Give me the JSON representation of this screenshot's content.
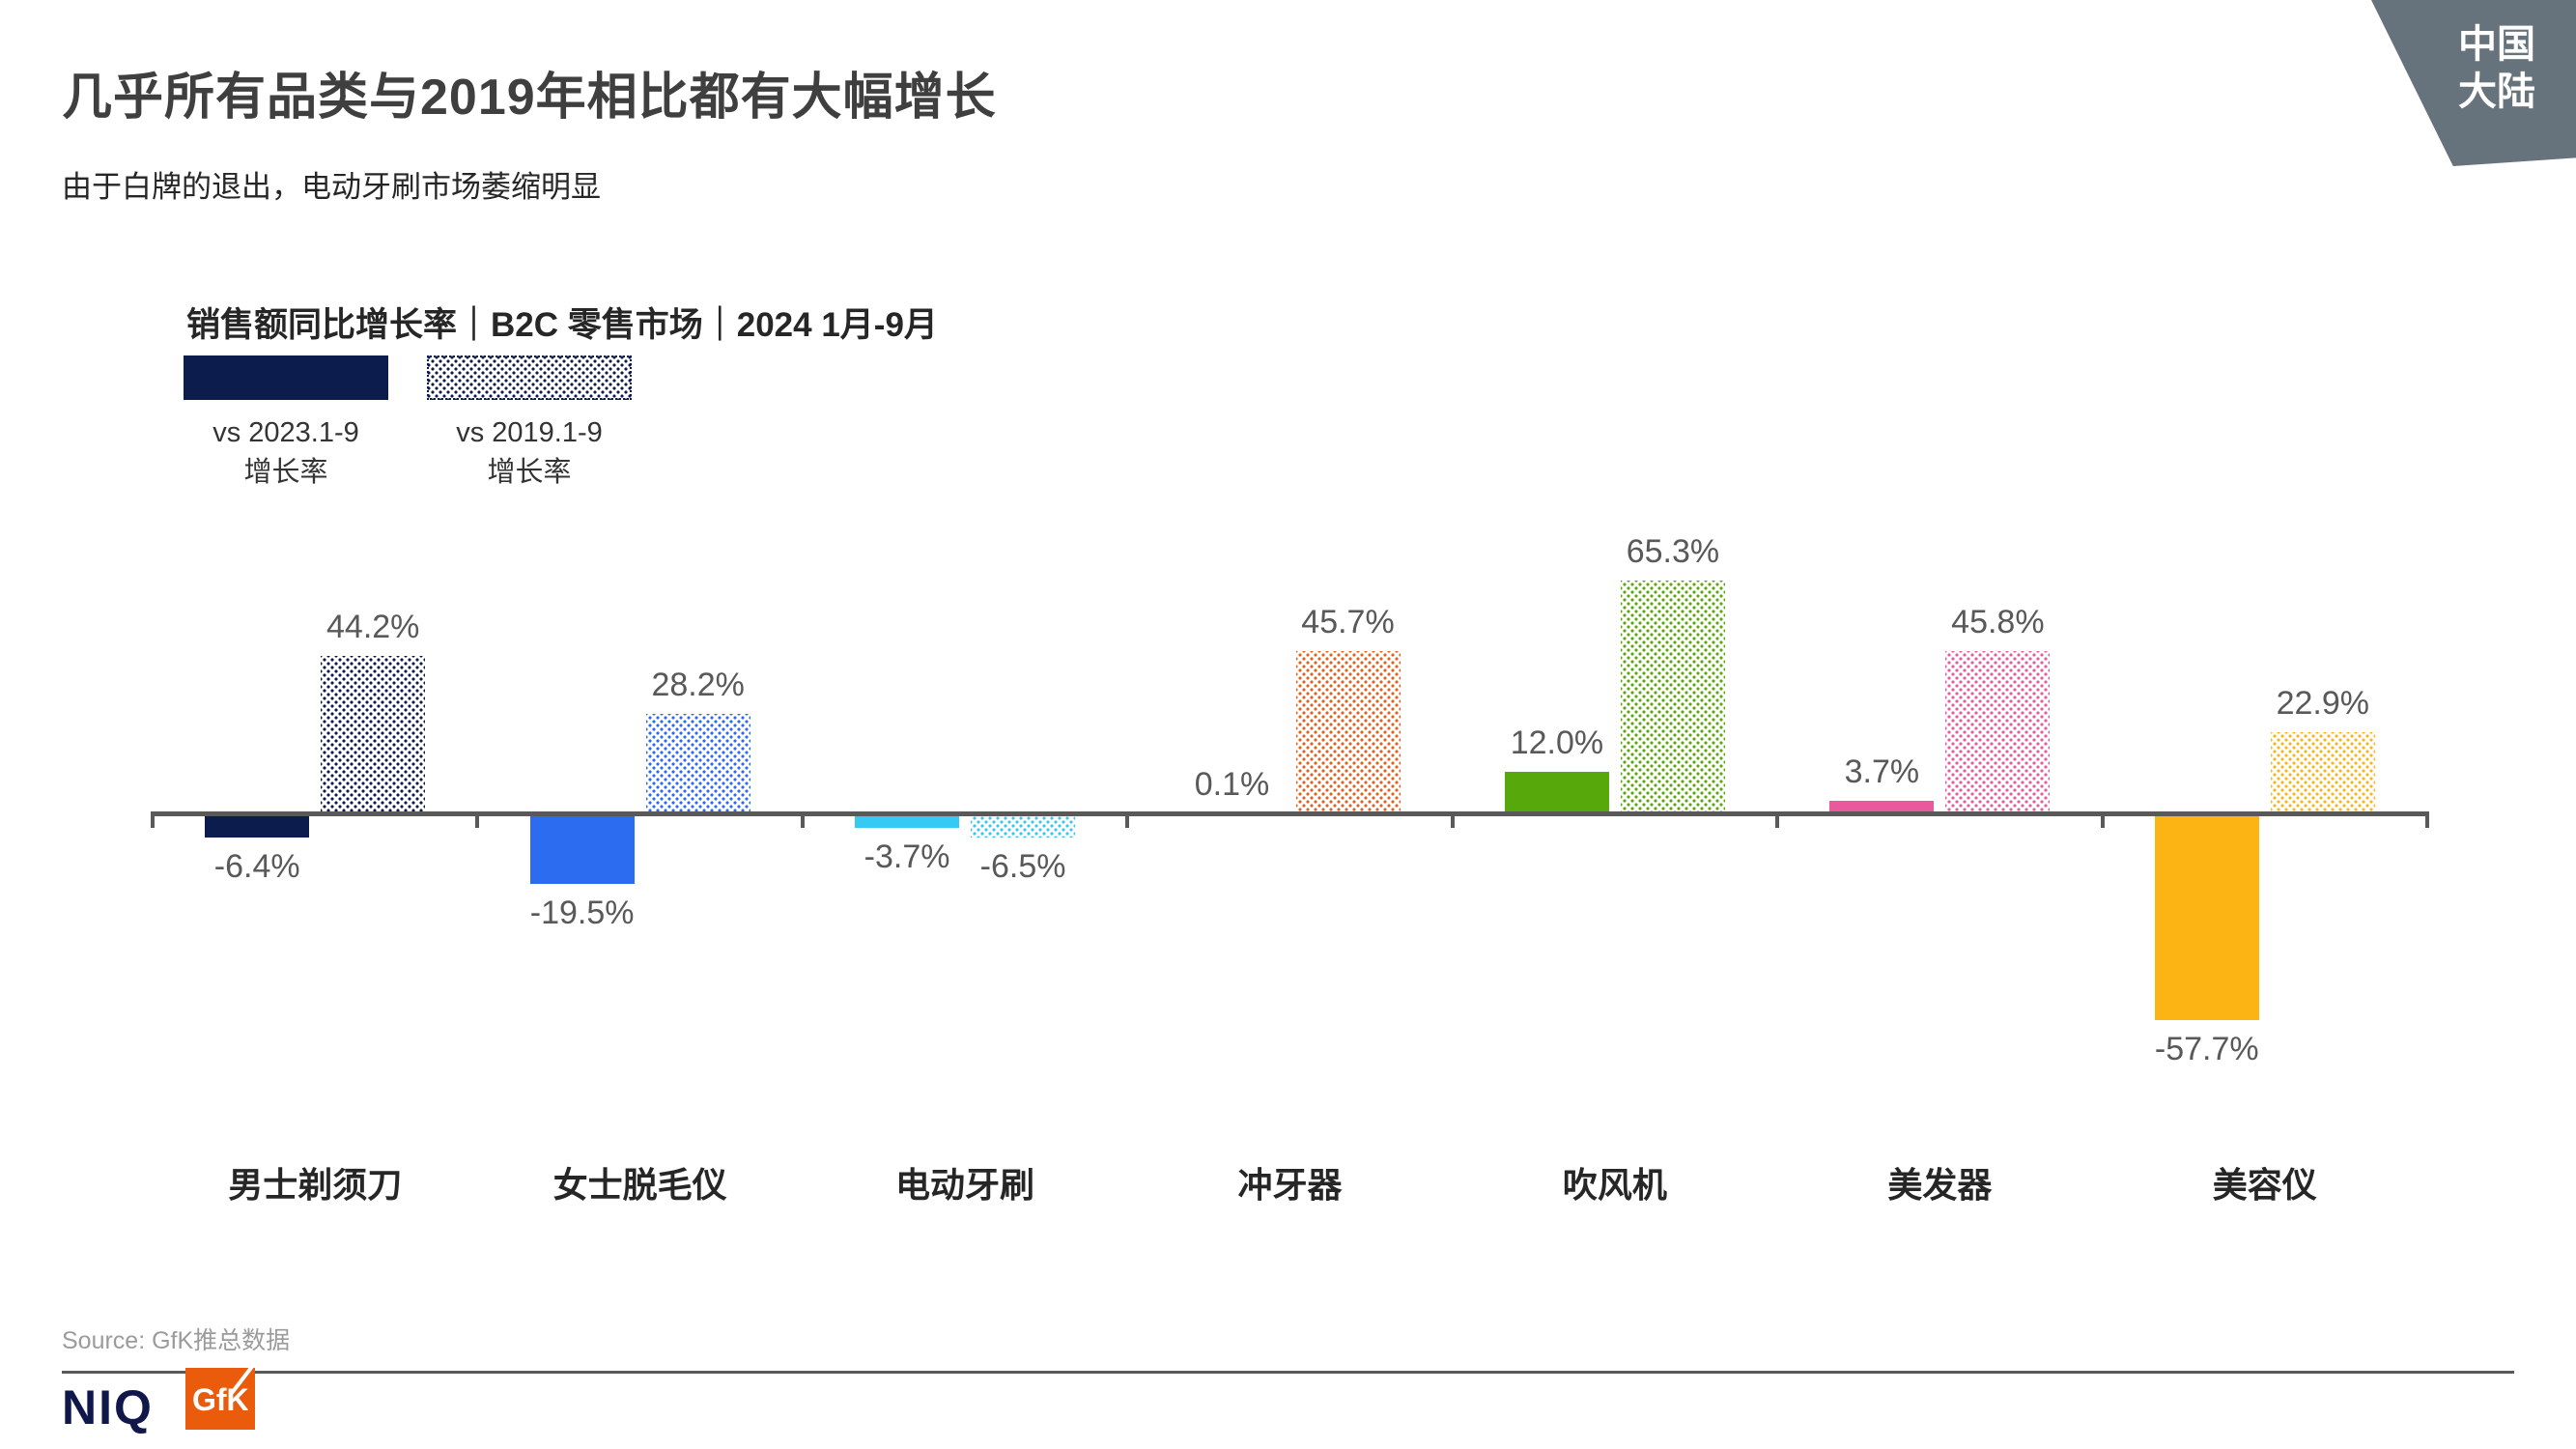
{
  "page": {
    "title": "几乎所有品类与2019年相比都有大幅增长",
    "subtitle": "由于白牌的退出，电动牙刷市场萎缩明显",
    "region_badge": {
      "line1": "中国",
      "line2": "大陆"
    }
  },
  "chart_data": {
    "type": "bar",
    "title": "销售额同比增长率｜B2C 零售市场｜2024 1月-9月",
    "categories": [
      "男士剃须刀",
      "女士脱毛仪",
      "电动牙刷",
      "冲牙器",
      "吹风机",
      "美发器",
      "美容仪"
    ],
    "series": [
      {
        "name": "vs 2023.1-9 增长率",
        "legend_line1": "vs 2023.1-9",
        "legend_line2": "增长率",
        "pattern": "solid",
        "values": [
          -6.4,
          -19.5,
          -3.7,
          0.1,
          12.0,
          3.7,
          -57.7
        ]
      },
      {
        "name": "vs 2019.1-9 增长率",
        "legend_line1": "vs 2019.1-9",
        "legend_line2": "增长率",
        "pattern": "dotted",
        "values": [
          44.2,
          28.2,
          -6.5,
          45.7,
          65.3,
          45.8,
          22.9
        ]
      }
    ],
    "value_labels": {
      "solid": [
        "-6.4%",
        "-19.5%",
        "-3.7%",
        "0.1%",
        "12.0%",
        "3.7%",
        "-57.7%"
      ],
      "dotted": [
        "44.2%",
        "28.2%",
        "-6.5%",
        "45.7%",
        "65.3%",
        "45.8%",
        "22.9%"
      ]
    },
    "category_colors": [
      "#0C1C4D",
      "#2B6CF0",
      "#36C9F4",
      "#E8601C",
      "#57A80A",
      "#E85A9C",
      "#FCB415"
    ],
    "legend_swatch_color": "#0C1C4D",
    "axis_color": "#595959",
    "ylim": [
      -70,
      80
    ],
    "grid": false,
    "legend_position": "top-left",
    "xlabel": "",
    "ylabel": ""
  },
  "footer": {
    "source": "Source: GfK推总数据",
    "niq_logo": "NIQ",
    "gfk_logo": "GfK"
  }
}
